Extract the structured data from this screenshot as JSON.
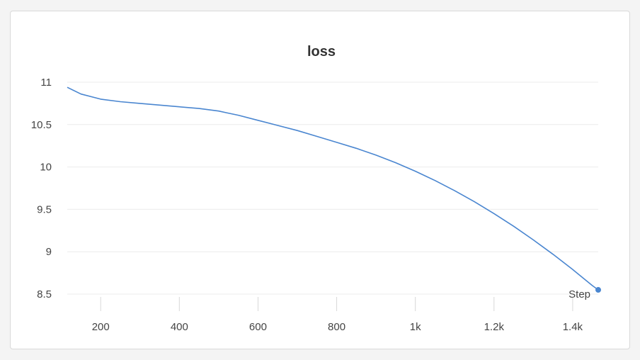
{
  "chart_data": {
    "type": "line",
    "title": "loss",
    "xlabel": "Step",
    "ylabel": "",
    "xlim": [
      115,
      1465
    ],
    "ylim": [
      8.5,
      11
    ],
    "yticks": [
      {
        "value": 8.5,
        "label": "8.5"
      },
      {
        "value": 9,
        "label": "9"
      },
      {
        "value": 9.5,
        "label": "9.5"
      },
      {
        "value": 10,
        "label": "10"
      },
      {
        "value": 10.5,
        "label": "10.5"
      },
      {
        "value": 11,
        "label": "11"
      }
    ],
    "xticks": [
      {
        "value": 200,
        "label": "200"
      },
      {
        "value": 400,
        "label": "400"
      },
      {
        "value": 600,
        "label": "600"
      },
      {
        "value": 800,
        "label": "800"
      },
      {
        "value": 1000,
        "label": "1k"
      },
      {
        "value": 1200,
        "label": "1.2k"
      },
      {
        "value": 1400,
        "label": "1.4k"
      }
    ],
    "grid": true,
    "series": [
      {
        "color": "#4a86d0",
        "x": [
          115,
          150,
          200,
          250,
          300,
          350,
          400,
          450,
          500,
          520,
          550,
          600,
          650,
          700,
          750,
          800,
          850,
          900,
          950,
          1000,
          1050,
          1100,
          1150,
          1200,
          1250,
          1300,
          1350,
          1400,
          1450,
          1465
        ],
        "y": [
          10.94,
          10.86,
          10.8,
          10.77,
          10.75,
          10.73,
          10.71,
          10.69,
          10.66,
          10.64,
          10.61,
          10.55,
          10.49,
          10.43,
          10.36,
          10.29,
          10.22,
          10.14,
          10.05,
          9.95,
          9.84,
          9.72,
          9.59,
          9.45,
          9.3,
          9.14,
          8.97,
          8.79,
          8.6,
          8.55
        ]
      }
    ]
  }
}
